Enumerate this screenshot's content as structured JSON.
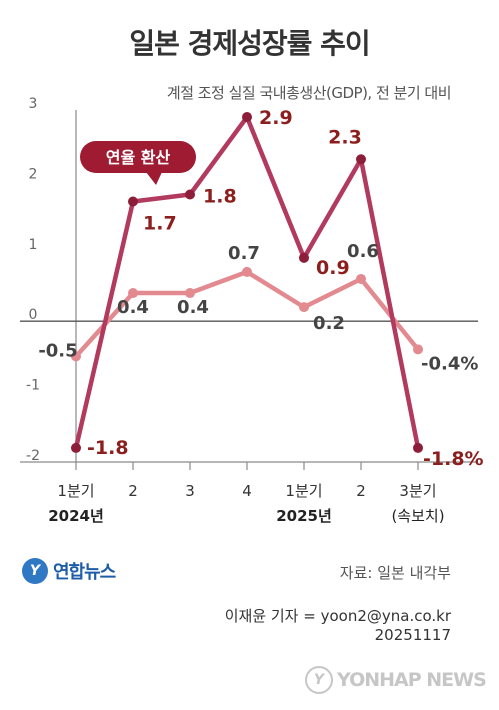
{
  "title": "일본 경제성장률 추이",
  "subtitle": "계절 조정 실질 국내총생산(GDP), 전 분기 대비",
  "chart_data": {
    "type": "line",
    "categories": [
      "1분기",
      "2",
      "3",
      "4",
      "1분기",
      "2",
      "3분기"
    ],
    "category_sublabels": [
      "2024년",
      "",
      "",
      "",
      "2025년",
      "",
      "(속보치)"
    ],
    "yticks": [
      "3",
      "2",
      "1",
      "0",
      "-1",
      "-2"
    ],
    "ylim": [
      -2,
      3
    ],
    "grid": false,
    "annotation": "연율 환산",
    "series": [
      {
        "values": [
          -1.8,
          1.7,
          1.8,
          2.9,
          0.9,
          2.3,
          -1.8
        ],
        "labels": [
          "-1.8",
          "1.7",
          "1.8",
          "2.9",
          "0.9",
          "2.3",
          "-1.8%"
        ],
        "color": "#b23a5e",
        "label_color": "#8c1e1e"
      },
      {
        "values": [
          -0.5,
          0.4,
          0.4,
          0.7,
          0.2,
          0.6,
          -0.4
        ],
        "labels": [
          "-0.5",
          "0.4",
          "0.4",
          "0.7",
          "0.2",
          "0.6",
          "-0.4%"
        ],
        "color": "#e28a90",
        "label_color": "#444444"
      }
    ]
  },
  "source": "자료: 일본 내각부",
  "author": "이재윤 기자 = yoon2@yna.co.kr",
  "date": "20251117",
  "logo_text": "연합뉴스",
  "watermark_text": "YONHAP NEWS",
  "colors": {
    "annotation_bg": "#9e1b32",
    "axis": "#555555"
  }
}
